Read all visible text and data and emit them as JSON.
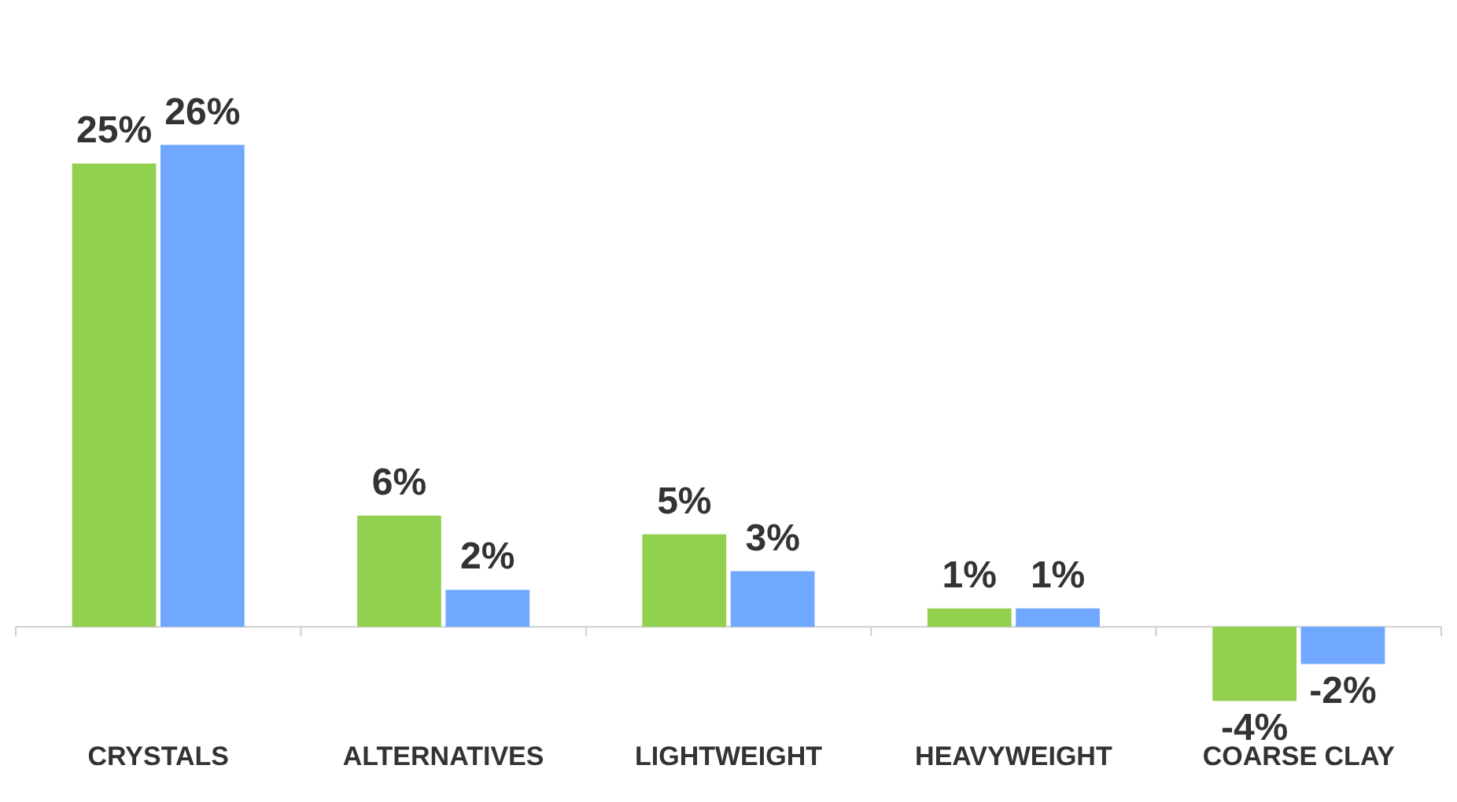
{
  "chart_data": {
    "type": "bar",
    "categories": [
      "CRYSTALS",
      "ALTERNATIVES",
      "LIGHTWEIGHT",
      "HEAVYWEIGHT",
      "COARSE CLAY"
    ],
    "series": [
      {
        "color": "#92d050",
        "values": [
          25,
          6,
          5,
          1,
          -4
        ],
        "value_labels": [
          "25%",
          "6%",
          "5%",
          "1%",
          "-4%"
        ]
      },
      {
        "color": "#70a8ff",
        "values": [
          26,
          2,
          3,
          1,
          -2
        ],
        "value_labels": [
          "26%",
          "2%",
          "3%",
          "1%",
          "-2%"
        ]
      }
    ],
    "legend": false,
    "grid": false,
    "tick_labels": "x"
  }
}
